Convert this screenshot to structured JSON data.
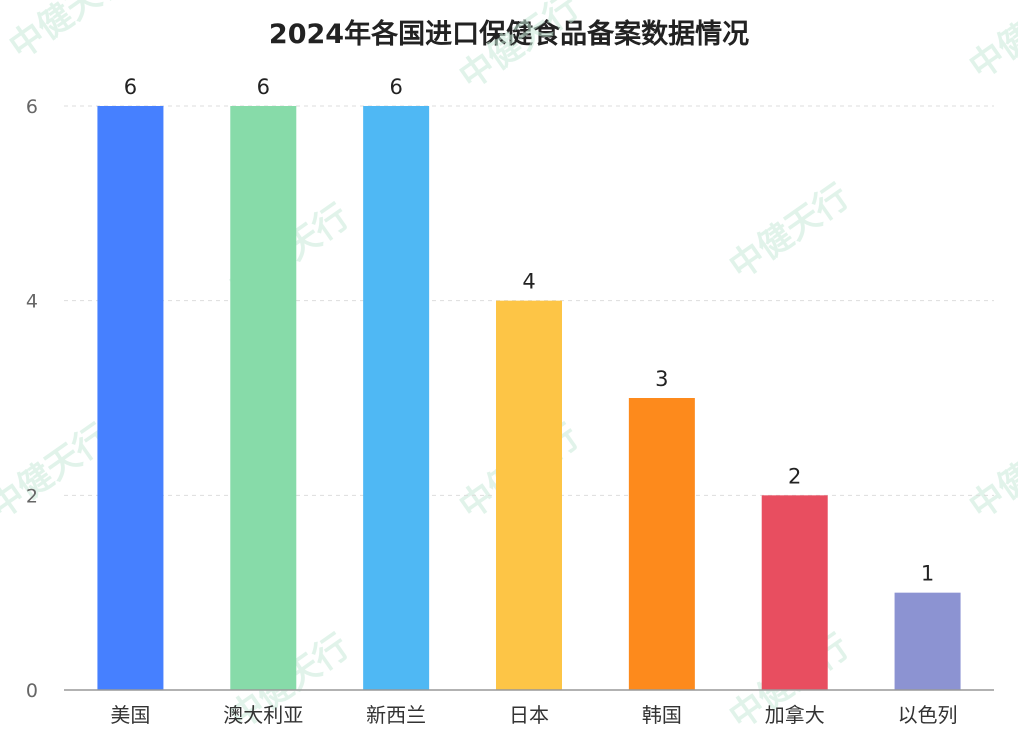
{
  "chart_data": {
    "type": "bar",
    "title": "2024年各国进口保健食品备案数据情况",
    "xlabel": "",
    "ylabel": "",
    "categories": [
      "美国",
      "澳大利亚",
      "新西兰",
      "日本",
      "韩国",
      "加拿大",
      "以色列"
    ],
    "values": [
      6,
      6,
      6,
      4,
      3,
      2,
      1
    ],
    "colors": [
      "#4680FF",
      "#87DBA9",
      "#4FB8F4",
      "#FDC546",
      "#FD8A1C",
      "#E84E60",
      "#8C93D2"
    ],
    "ylim": [
      0,
      6
    ],
    "yticks": [
      0,
      2,
      4,
      6
    ],
    "grid": true,
    "legend": "none",
    "data_labels": true
  },
  "watermark": {
    "text": "中健天行",
    "color": "#87DBA9"
  }
}
